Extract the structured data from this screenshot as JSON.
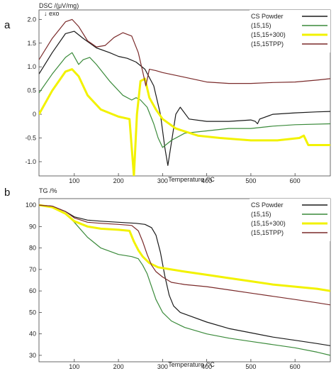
{
  "chart_data": [
    {
      "panel_label": "a",
      "type": "line",
      "ylabel": "DSC /(μV/mg)",
      "exo_label": "↓ exo",
      "xlabel": "Temperature /°C",
      "xlim": [
        20,
        680
      ],
      "ylim": [
        -1.3,
        2.2
      ],
      "xticks": [
        100,
        200,
        300,
        400,
        500,
        600
      ],
      "yticks": [
        2.0,
        1.5,
        1.0,
        0.5,
        0,
        -0.5,
        -1.0
      ],
      "ytick_labels": [
        "2.0",
        "1.5",
        "1.0",
        "0.5",
        "0",
        "-0.5",
        "-1.0"
      ],
      "grid": false,
      "legend_position": "top-right",
      "series": [
        {
          "name": "CS Powder",
          "color": "#1a1a1a",
          "x": [
            20,
            50,
            80,
            100,
            120,
            150,
            180,
            200,
            220,
            240,
            260,
            280,
            295,
            305,
            312,
            320,
            330,
            340,
            360,
            400,
            450,
            500,
            510,
            515,
            520,
            550,
            600,
            650,
            680
          ],
          "y": [
            0.85,
            1.3,
            1.7,
            1.75,
            1.6,
            1.4,
            1.3,
            1.22,
            1.18,
            1.1,
            0.95,
            0.6,
            0.0,
            -0.7,
            -1.08,
            -0.6,
            0.0,
            0.15,
            -0.1,
            -0.15,
            -0.15,
            -0.12,
            -0.15,
            -0.2,
            -0.1,
            0.0,
            0.03,
            0.05,
            0.06
          ]
        },
        {
          "name": "(15,15)",
          "color": "#3a8a3a",
          "x": [
            20,
            50,
            80,
            95,
            110,
            120,
            135,
            150,
            180,
            210,
            230,
            240,
            250,
            265,
            280,
            290,
            300,
            320,
            350,
            400,
            450,
            500,
            550,
            600,
            680
          ],
          "y": [
            0.45,
            0.85,
            1.2,
            1.3,
            1.05,
            1.15,
            1.2,
            1.05,
            0.7,
            0.4,
            0.3,
            0.35,
            0.3,
            0.15,
            -0.2,
            -0.5,
            -0.7,
            -0.55,
            -0.4,
            -0.35,
            -0.3,
            -0.3,
            -0.25,
            -0.22,
            -0.2
          ]
        },
        {
          "name": "(15,15+300)",
          "color": "#f2f200",
          "x": [
            20,
            50,
            80,
            95,
            110,
            130,
            160,
            200,
            225,
            230,
            235,
            242,
            250,
            260,
            270,
            285,
            300,
            330,
            380,
            430,
            500,
            560,
            610,
            620,
            630,
            680
          ],
          "y": [
            0.0,
            0.5,
            0.9,
            0.95,
            0.8,
            0.4,
            0.1,
            -0.05,
            -0.1,
            -0.7,
            -1.3,
            0.0,
            0.7,
            0.75,
            0.35,
            0.1,
            -0.1,
            -0.3,
            -0.45,
            -0.5,
            -0.55,
            -0.55,
            -0.5,
            -0.45,
            -0.65,
            -0.65
          ]
        },
        {
          "name": "(15,15TPP)",
          "color": "#7a2a2a",
          "x": [
            20,
            50,
            80,
            95,
            110,
            130,
            150,
            170,
            190,
            210,
            230,
            245,
            255,
            262,
            270,
            285,
            300,
            340,
            400,
            450,
            500,
            550,
            600,
            650,
            680
          ],
          "y": [
            1.15,
            1.6,
            1.95,
            2.0,
            1.85,
            1.55,
            1.42,
            1.45,
            1.62,
            1.72,
            1.65,
            1.3,
            0.9,
            0.6,
            0.95,
            0.92,
            0.88,
            0.8,
            0.68,
            0.65,
            0.65,
            0.67,
            0.68,
            0.72,
            0.75
          ]
        }
      ]
    },
    {
      "panel_label": "b",
      "type": "line",
      "ylabel": "TG /%",
      "xlabel": "Temperature /°C",
      "xlim": [
        20,
        680
      ],
      "ylim": [
        27,
        103
      ],
      "xticks": [
        100,
        200,
        300,
        400,
        500,
        600
      ],
      "yticks": [
        100,
        90,
        80,
        70,
        60,
        50,
        40,
        30
      ],
      "ytick_labels": [
        "100",
        "90",
        "80",
        "70",
        "60",
        "50",
        "40",
        "30"
      ],
      "grid": false,
      "legend_position": "top-right",
      "series": [
        {
          "name": "CS Powder",
          "color": "#1a1a1a",
          "x": [
            20,
            50,
            80,
            100,
            130,
            160,
            200,
            240,
            260,
            275,
            285,
            295,
            305,
            315,
            325,
            340,
            360,
            400,
            450,
            500,
            550,
            600,
            650,
            680
          ],
          "y": [
            100,
            99.5,
            97,
            94.5,
            93,
            92.5,
            92,
            91.5,
            91,
            89.5,
            86,
            78,
            67,
            58,
            53,
            50,
            48.5,
            45.5,
            42.5,
            40.5,
            38.5,
            37,
            35.5,
            34.5
          ]
        },
        {
          "name": "(15,15)",
          "color": "#3a8a3a",
          "x": [
            20,
            50,
            80,
            100,
            130,
            160,
            200,
            230,
            245,
            255,
            265,
            275,
            285,
            300,
            320,
            350,
            400,
            450,
            500,
            550,
            600,
            650,
            680
          ],
          "y": [
            100,
            99,
            96,
            92,
            85,
            80,
            77,
            76,
            75,
            72,
            68,
            62,
            56,
            50,
            46,
            43,
            40,
            38,
            36.5,
            35,
            33.5,
            31.5,
            30
          ]
        },
        {
          "name": "(15,15+300)",
          "color": "#f2f200",
          "x": [
            20,
            50,
            80,
            100,
            130,
            160,
            200,
            225,
            235,
            245,
            255,
            270,
            290,
            320,
            350,
            400,
            450,
            500,
            550,
            600,
            650,
            680
          ],
          "y": [
            100,
            99,
            96,
            92.5,
            90,
            89,
            88.5,
            88,
            83,
            79,
            76,
            73,
            71,
            70,
            69,
            67.5,
            66,
            64.5,
            63,
            62,
            61,
            60
          ]
        },
        {
          "name": "(15,15TPP)",
          "color": "#7a2a2a",
          "x": [
            20,
            50,
            80,
            100,
            130,
            160,
            200,
            230,
            245,
            255,
            265,
            275,
            285,
            300,
            320,
            350,
            400,
            450,
            500,
            550,
            600,
            650,
            680
          ],
          "y": [
            100,
            99.5,
            97,
            94,
            92,
            91.5,
            91,
            90.5,
            88,
            83,
            77,
            72,
            69,
            66.5,
            64,
            63,
            62,
            60.5,
            59,
            57.5,
            56,
            54.5,
            53.5
          ]
        }
      ]
    }
  ]
}
